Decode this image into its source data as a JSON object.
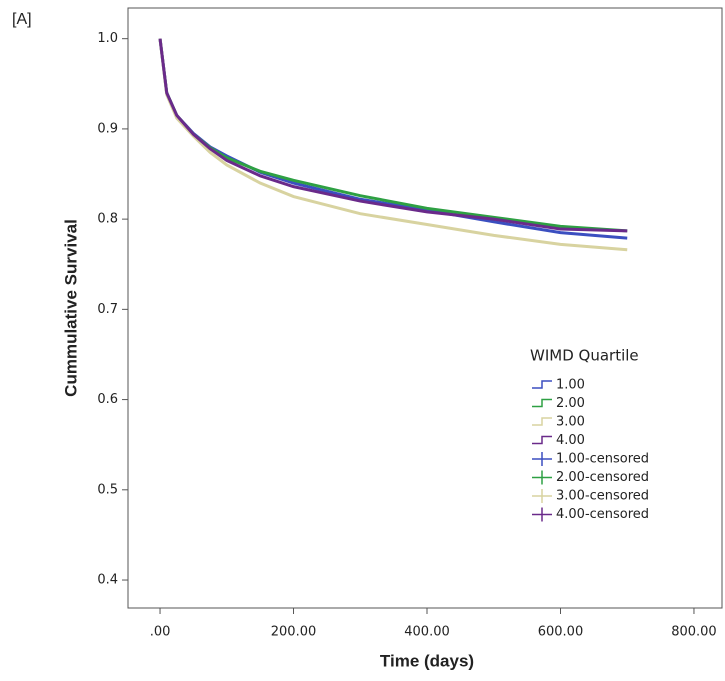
{
  "chart_data": {
    "type": "line",
    "panel_label": "[A]",
    "x_label": "Time (days)",
    "y_label": "Cummulative Survival",
    "legend_title": "WIMD Quartile",
    "x": [
      0,
      10,
      25,
      50,
      75,
      100,
      150,
      200,
      300,
      400,
      500,
      600,
      700
    ],
    "series": [
      {
        "name": "1.00",
        "color": "#3b4fc0",
        "values": [
          1.0,
          0.94,
          0.915,
          0.895,
          0.88,
          0.87,
          0.852,
          0.84,
          0.822,
          0.81,
          0.797,
          0.785,
          0.779
        ]
      },
      {
        "name": "2.00",
        "color": "#2ea043",
        "values": [
          1.0,
          0.94,
          0.915,
          0.894,
          0.879,
          0.868,
          0.853,
          0.843,
          0.826,
          0.812,
          0.802,
          0.792,
          0.787
        ]
      },
      {
        "name": "3.00",
        "color": "#d8d3a0",
        "values": [
          1.0,
          0.938,
          0.912,
          0.892,
          0.874,
          0.86,
          0.84,
          0.825,
          0.806,
          0.794,
          0.782,
          0.772,
          0.766
        ]
      },
      {
        "name": "4.00",
        "color": "#6a2a8a",
        "values": [
          1.0,
          0.94,
          0.915,
          0.894,
          0.878,
          0.865,
          0.848,
          0.836,
          0.82,
          0.808,
          0.8,
          0.789,
          0.787
        ]
      }
    ],
    "censored_legend": [
      {
        "name": "1.00-censored",
        "color": "#3b4fc0"
      },
      {
        "name": "2.00-censored",
        "color": "#2ea043"
      },
      {
        "name": "3.00-censored",
        "color": "#d8d3a0"
      },
      {
        "name": "4.00-censored",
        "color": "#6a2a8a"
      }
    ],
    "xlim": [
      -48,
      842
    ],
    "ylim": [
      0.369,
      1.034
    ],
    "xticks": [
      {
        "value": 0,
        "label": ".00"
      },
      {
        "value": 200,
        "label": "200.00"
      },
      {
        "value": 400,
        "label": "400.00"
      },
      {
        "value": 600,
        "label": "600.00"
      },
      {
        "value": 800,
        "label": "800.00"
      }
    ],
    "yticks": [
      0.4,
      0.5,
      0.6,
      0.7,
      0.8,
      0.9,
      {
        "value": 1,
        "label": "1.0"
      }
    ]
  }
}
